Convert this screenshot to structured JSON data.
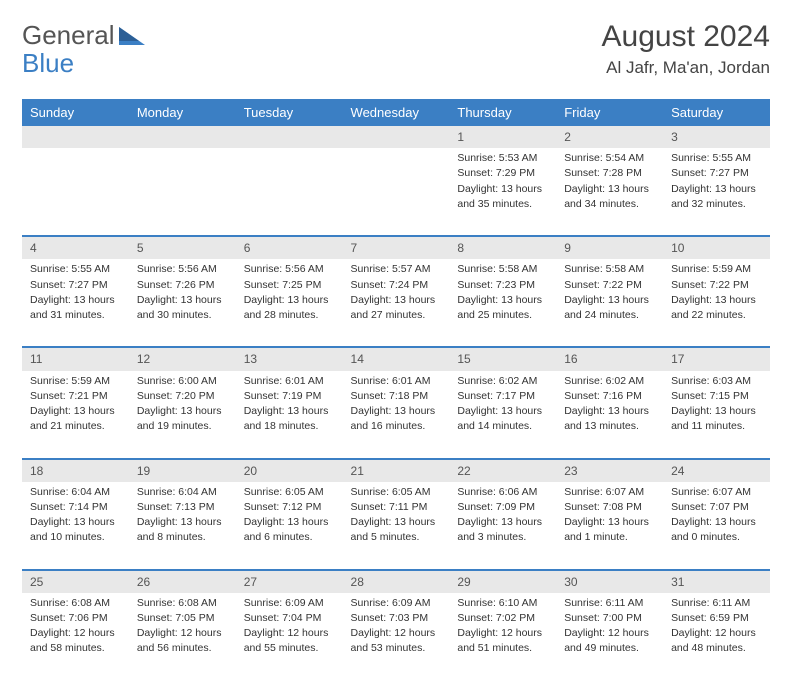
{
  "brand": {
    "part1": "General",
    "part2": "Blue"
  },
  "title": "August 2024",
  "location": "Al Jafr, Ma'an, Jordan",
  "header_color": "#3b7fc4",
  "daynum_bg": "#e8e8e8",
  "weekdays": [
    "Sunday",
    "Monday",
    "Tuesday",
    "Wednesday",
    "Thursday",
    "Friday",
    "Saturday"
  ],
  "weeks": [
    [
      null,
      null,
      null,
      null,
      {
        "d": "1",
        "sr": "Sunrise: 5:53 AM",
        "ss": "Sunset: 7:29 PM",
        "dl1": "Daylight: 13 hours",
        "dl2": "and 35 minutes."
      },
      {
        "d": "2",
        "sr": "Sunrise: 5:54 AM",
        "ss": "Sunset: 7:28 PM",
        "dl1": "Daylight: 13 hours",
        "dl2": "and 34 minutes."
      },
      {
        "d": "3",
        "sr": "Sunrise: 5:55 AM",
        "ss": "Sunset: 7:27 PM",
        "dl1": "Daylight: 13 hours",
        "dl2": "and 32 minutes."
      }
    ],
    [
      {
        "d": "4",
        "sr": "Sunrise: 5:55 AM",
        "ss": "Sunset: 7:27 PM",
        "dl1": "Daylight: 13 hours",
        "dl2": "and 31 minutes."
      },
      {
        "d": "5",
        "sr": "Sunrise: 5:56 AM",
        "ss": "Sunset: 7:26 PM",
        "dl1": "Daylight: 13 hours",
        "dl2": "and 30 minutes."
      },
      {
        "d": "6",
        "sr": "Sunrise: 5:56 AM",
        "ss": "Sunset: 7:25 PM",
        "dl1": "Daylight: 13 hours",
        "dl2": "and 28 minutes."
      },
      {
        "d": "7",
        "sr": "Sunrise: 5:57 AM",
        "ss": "Sunset: 7:24 PM",
        "dl1": "Daylight: 13 hours",
        "dl2": "and 27 minutes."
      },
      {
        "d": "8",
        "sr": "Sunrise: 5:58 AM",
        "ss": "Sunset: 7:23 PM",
        "dl1": "Daylight: 13 hours",
        "dl2": "and 25 minutes."
      },
      {
        "d": "9",
        "sr": "Sunrise: 5:58 AM",
        "ss": "Sunset: 7:22 PM",
        "dl1": "Daylight: 13 hours",
        "dl2": "and 24 minutes."
      },
      {
        "d": "10",
        "sr": "Sunrise: 5:59 AM",
        "ss": "Sunset: 7:22 PM",
        "dl1": "Daylight: 13 hours",
        "dl2": "and 22 minutes."
      }
    ],
    [
      {
        "d": "11",
        "sr": "Sunrise: 5:59 AM",
        "ss": "Sunset: 7:21 PM",
        "dl1": "Daylight: 13 hours",
        "dl2": "and 21 minutes."
      },
      {
        "d": "12",
        "sr": "Sunrise: 6:00 AM",
        "ss": "Sunset: 7:20 PM",
        "dl1": "Daylight: 13 hours",
        "dl2": "and 19 minutes."
      },
      {
        "d": "13",
        "sr": "Sunrise: 6:01 AM",
        "ss": "Sunset: 7:19 PM",
        "dl1": "Daylight: 13 hours",
        "dl2": "and 18 minutes."
      },
      {
        "d": "14",
        "sr": "Sunrise: 6:01 AM",
        "ss": "Sunset: 7:18 PM",
        "dl1": "Daylight: 13 hours",
        "dl2": "and 16 minutes."
      },
      {
        "d": "15",
        "sr": "Sunrise: 6:02 AM",
        "ss": "Sunset: 7:17 PM",
        "dl1": "Daylight: 13 hours",
        "dl2": "and 14 minutes."
      },
      {
        "d": "16",
        "sr": "Sunrise: 6:02 AM",
        "ss": "Sunset: 7:16 PM",
        "dl1": "Daylight: 13 hours",
        "dl2": "and 13 minutes."
      },
      {
        "d": "17",
        "sr": "Sunrise: 6:03 AM",
        "ss": "Sunset: 7:15 PM",
        "dl1": "Daylight: 13 hours",
        "dl2": "and 11 minutes."
      }
    ],
    [
      {
        "d": "18",
        "sr": "Sunrise: 6:04 AM",
        "ss": "Sunset: 7:14 PM",
        "dl1": "Daylight: 13 hours",
        "dl2": "and 10 minutes."
      },
      {
        "d": "19",
        "sr": "Sunrise: 6:04 AM",
        "ss": "Sunset: 7:13 PM",
        "dl1": "Daylight: 13 hours",
        "dl2": "and 8 minutes."
      },
      {
        "d": "20",
        "sr": "Sunrise: 6:05 AM",
        "ss": "Sunset: 7:12 PM",
        "dl1": "Daylight: 13 hours",
        "dl2": "and 6 minutes."
      },
      {
        "d": "21",
        "sr": "Sunrise: 6:05 AM",
        "ss": "Sunset: 7:11 PM",
        "dl1": "Daylight: 13 hours",
        "dl2": "and 5 minutes."
      },
      {
        "d": "22",
        "sr": "Sunrise: 6:06 AM",
        "ss": "Sunset: 7:09 PM",
        "dl1": "Daylight: 13 hours",
        "dl2": "and 3 minutes."
      },
      {
        "d": "23",
        "sr": "Sunrise: 6:07 AM",
        "ss": "Sunset: 7:08 PM",
        "dl1": "Daylight: 13 hours",
        "dl2": "and 1 minute."
      },
      {
        "d": "24",
        "sr": "Sunrise: 6:07 AM",
        "ss": "Sunset: 7:07 PM",
        "dl1": "Daylight: 13 hours",
        "dl2": "and 0 minutes."
      }
    ],
    [
      {
        "d": "25",
        "sr": "Sunrise: 6:08 AM",
        "ss": "Sunset: 7:06 PM",
        "dl1": "Daylight: 12 hours",
        "dl2": "and 58 minutes."
      },
      {
        "d": "26",
        "sr": "Sunrise: 6:08 AM",
        "ss": "Sunset: 7:05 PM",
        "dl1": "Daylight: 12 hours",
        "dl2": "and 56 minutes."
      },
      {
        "d": "27",
        "sr": "Sunrise: 6:09 AM",
        "ss": "Sunset: 7:04 PM",
        "dl1": "Daylight: 12 hours",
        "dl2": "and 55 minutes."
      },
      {
        "d": "28",
        "sr": "Sunrise: 6:09 AM",
        "ss": "Sunset: 7:03 PM",
        "dl1": "Daylight: 12 hours",
        "dl2": "and 53 minutes."
      },
      {
        "d": "29",
        "sr": "Sunrise: 6:10 AM",
        "ss": "Sunset: 7:02 PM",
        "dl1": "Daylight: 12 hours",
        "dl2": "and 51 minutes."
      },
      {
        "d": "30",
        "sr": "Sunrise: 6:11 AM",
        "ss": "Sunset: 7:00 PM",
        "dl1": "Daylight: 12 hours",
        "dl2": "and 49 minutes."
      },
      {
        "d": "31",
        "sr": "Sunrise: 6:11 AM",
        "ss": "Sunset: 6:59 PM",
        "dl1": "Daylight: 12 hours",
        "dl2": "and 48 minutes."
      }
    ]
  ]
}
